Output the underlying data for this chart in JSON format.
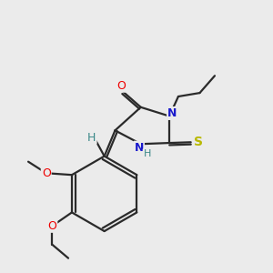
{
  "bg_color": "#ebebeb",
  "bond_color": "#2a2a2a",
  "atom_colors": {
    "O": "#ee0000",
    "N": "#1a1acc",
    "S": "#b8b800",
    "H": "#3a8888",
    "C": "#2a2a2a"
  },
  "figsize": [
    3.0,
    3.0
  ],
  "dpi": 100,
  "lw": 1.6,
  "fontsize": 9
}
